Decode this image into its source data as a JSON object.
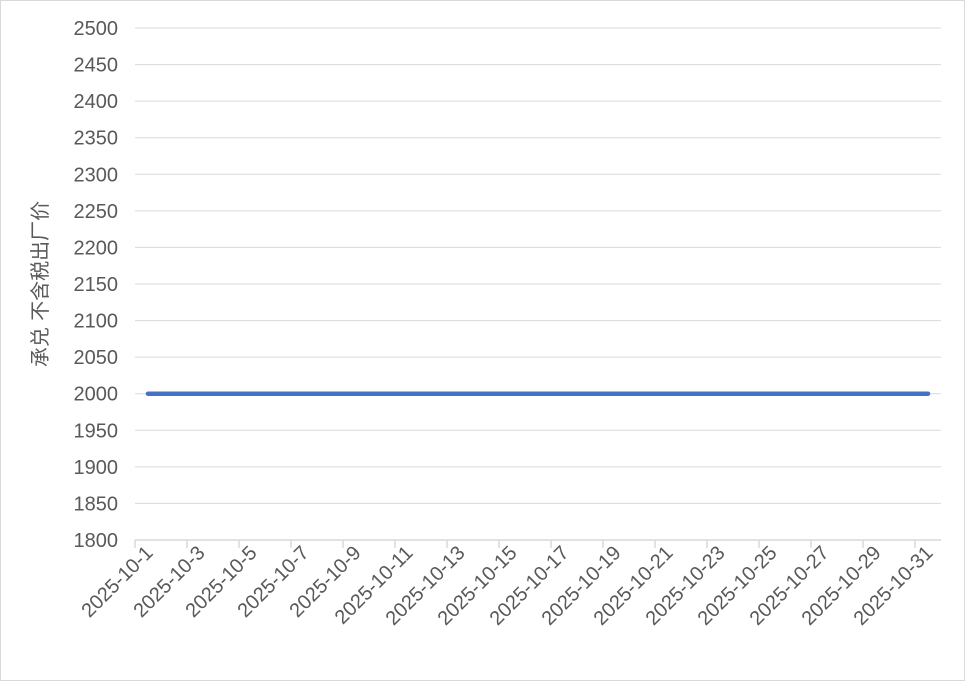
{
  "chart_data": {
    "type": "line",
    "title": "",
    "xlabel": "",
    "ylabel": "承兑 不含税出厂价",
    "ylim": [
      1800,
      2500
    ],
    "ytick_step": 50,
    "grid": "horizontal",
    "legend": "none",
    "x": [
      "2025-10-1",
      "2025-10-2",
      "2025-10-3",
      "2025-10-4",
      "2025-10-5",
      "2025-10-6",
      "2025-10-7",
      "2025-10-8",
      "2025-10-9",
      "2025-10-10",
      "2025-10-11",
      "2025-10-12",
      "2025-10-13",
      "2025-10-14",
      "2025-10-15",
      "2025-10-16",
      "2025-10-17",
      "2025-10-18",
      "2025-10-19",
      "2025-10-20",
      "2025-10-21",
      "2025-10-22",
      "2025-10-23",
      "2025-10-24",
      "2025-10-25",
      "2025-10-26",
      "2025-10-27",
      "2025-10-28",
      "2025-10-29",
      "2025-10-30",
      "2025-10-31"
    ],
    "xtick_labels_every": 2,
    "series": [
      {
        "values": [
          2000,
          2000,
          2000,
          2000,
          2000,
          2000,
          2000,
          2000,
          2000,
          2000,
          2000,
          2000,
          2000,
          2000,
          2000,
          2000,
          2000,
          2000,
          2000,
          2000,
          2000,
          2000,
          2000,
          2000,
          2000,
          2000,
          2000,
          2000,
          2000,
          2000,
          2000
        ],
        "color": "#4472c4"
      }
    ]
  }
}
